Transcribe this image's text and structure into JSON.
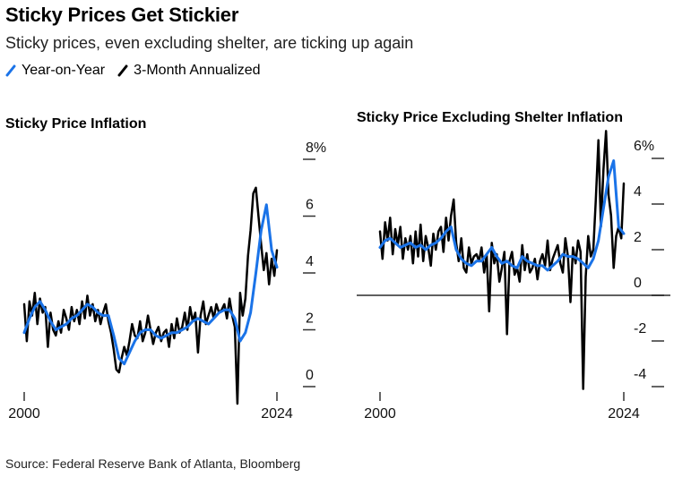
{
  "header": {
    "title": "Sticky Prices Get Stickier",
    "subtitle": "Sticky prices, even excluding shelter, are ticking up again"
  },
  "legend": [
    {
      "label": "Year-on-Year",
      "color": "#1a73e8"
    },
    {
      "label": "3-Month Annualized",
      "color": "#000000"
    }
  ],
  "source": "Source: Federal Reserve Bank of Atlanta, Bloomberg",
  "chart_data": [
    {
      "type": "line",
      "title": "Sticky Price Inflation",
      "xlim": [
        2000,
        2024
      ],
      "ylim": [
        0,
        8
      ],
      "x_ticks": [
        "2000",
        "2024"
      ],
      "y_ticks": [
        "0",
        "2",
        "4",
        "6",
        "8%"
      ],
      "y_tick_values": [
        0,
        2,
        4,
        6,
        8
      ],
      "series": [
        {
          "name": "Year-on-Year",
          "color": "#1a73e8",
          "x": [
            2000.0,
            2000.5,
            2001.0,
            2001.5,
            2002.0,
            2002.5,
            2003.0,
            2003.5,
            2004.0,
            2004.5,
            2005.0,
            2005.5,
            2006.0,
            2006.5,
            2007.0,
            2007.5,
            2008.0,
            2008.5,
            2009.0,
            2009.5,
            2010.0,
            2010.5,
            2011.0,
            2011.5,
            2012.0,
            2012.5,
            2013.0,
            2013.5,
            2014.0,
            2014.5,
            2015.0,
            2015.5,
            2016.0,
            2016.5,
            2017.0,
            2017.5,
            2018.0,
            2018.5,
            2019.0,
            2019.5,
            2020.0,
            2020.5,
            2021.0,
            2021.5,
            2022.0,
            2022.5,
            2023.0,
            2023.5,
            2024.0
          ],
          "y": [
            1.9,
            2.4,
            2.8,
            3.0,
            2.7,
            2.3,
            2.0,
            2.1,
            2.2,
            2.4,
            2.5,
            2.7,
            2.9,
            2.8,
            2.6,
            2.5,
            2.5,
            1.8,
            1.0,
            0.8,
            1.2,
            1.6,
            1.9,
            2.0,
            2.0,
            1.8,
            1.7,
            1.8,
            1.9,
            1.9,
            2.0,
            2.1,
            2.3,
            2.4,
            2.3,
            2.2,
            2.4,
            2.6,
            2.7,
            2.7,
            2.4,
            1.6,
            1.9,
            2.6,
            4.0,
            5.5,
            6.4,
            4.8,
            4.2
          ]
        },
        {
          "name": "3-Month Annualized",
          "color": "#000000",
          "x": [
            2000.0,
            2000.25,
            2000.5,
            2000.75,
            2001.0,
            2001.25,
            2001.5,
            2001.75,
            2002.0,
            2002.25,
            2002.5,
            2002.75,
            2003.0,
            2003.25,
            2003.5,
            2003.75,
            2004.0,
            2004.25,
            2004.5,
            2004.75,
            2005.0,
            2005.25,
            2005.5,
            2005.75,
            2006.0,
            2006.25,
            2006.5,
            2006.75,
            2007.0,
            2007.25,
            2007.5,
            2007.75,
            2008.0,
            2008.25,
            2008.5,
            2008.75,
            2009.0,
            2009.25,
            2009.5,
            2009.75,
            2010.0,
            2010.25,
            2010.5,
            2010.75,
            2011.0,
            2011.25,
            2011.5,
            2011.75,
            2012.0,
            2012.25,
            2012.5,
            2012.75,
            2013.0,
            2013.25,
            2013.5,
            2013.75,
            2014.0,
            2014.25,
            2014.5,
            2014.75,
            2015.0,
            2015.25,
            2015.5,
            2015.75,
            2016.0,
            2016.25,
            2016.5,
            2016.75,
            2017.0,
            2017.25,
            2017.5,
            2017.75,
            2018.0,
            2018.25,
            2018.5,
            2018.75,
            2019.0,
            2019.25,
            2019.5,
            2019.75,
            2020.0,
            2020.25,
            2020.5,
            2020.75,
            2021.0,
            2021.25,
            2021.5,
            2021.75,
            2022.0,
            2022.25,
            2022.5,
            2022.75,
            2023.0,
            2023.25,
            2023.5,
            2023.75,
            2024.0
          ],
          "y": [
            2.9,
            1.6,
            3.0,
            2.5,
            3.3,
            2.2,
            3.1,
            2.6,
            2.8,
            1.4,
            2.6,
            2.0,
            1.8,
            2.3,
            1.9,
            2.7,
            2.4,
            2.0,
            2.8,
            2.3,
            2.7,
            2.2,
            3.0,
            2.4,
            3.2,
            2.5,
            2.9,
            2.3,
            2.7,
            2.2,
            2.6,
            2.9,
            2.3,
            1.9,
            1.3,
            0.6,
            0.5,
            1.0,
            1.4,
            1.1,
            1.6,
            2.2,
            1.8,
            1.7,
            2.3,
            1.6,
            1.9,
            2.5,
            2.0,
            1.5,
            1.9,
            2.1,
            1.6,
            1.9,
            2.0,
            1.4,
            2.2,
            1.7,
            2.4,
            1.9,
            2.1,
            2.6,
            2.0,
            2.8,
            2.3,
            2.6,
            1.2,
            2.5,
            3.0,
            2.2,
            2.5,
            2.8,
            2.4,
            2.9,
            2.6,
            2.7,
            2.9,
            2.4,
            3.1,
            2.5,
            2.1,
            -0.6,
            3.3,
            2.5,
            3.1,
            4.6,
            5.5,
            6.8,
            7.0,
            6.0,
            5.0,
            4.1,
            4.7,
            3.6,
            4.5,
            3.9,
            4.8
          ]
        }
      ]
    },
    {
      "type": "line",
      "title": "Sticky Price Excluding Shelter Inflation",
      "xlim": [
        2000,
        2024
      ],
      "ylim": [
        -4,
        6
      ],
      "x_ticks": [
        "2000",
        "2024"
      ],
      "y_ticks": [
        "-4",
        "-2",
        "0",
        "2",
        "4",
        "6%"
      ],
      "y_tick_values": [
        -4,
        -2,
        0,
        2,
        4,
        6
      ],
      "zero_line": true,
      "series": [
        {
          "name": "Year-on-Year",
          "color": "#1a73e8",
          "x": [
            2000.0,
            2000.5,
            2001.0,
            2001.5,
            2002.0,
            2002.5,
            2003.0,
            2003.5,
            2004.0,
            2004.5,
            2005.0,
            2005.5,
            2006.0,
            2006.5,
            2007.0,
            2007.5,
            2008.0,
            2008.5,
            2009.0,
            2009.5,
            2010.0,
            2010.5,
            2011.0,
            2011.5,
            2012.0,
            2012.5,
            2013.0,
            2013.5,
            2014.0,
            2014.5,
            2015.0,
            2015.5,
            2016.0,
            2016.5,
            2017.0,
            2017.5,
            2018.0,
            2018.5,
            2019.0,
            2019.5,
            2020.0,
            2020.5,
            2021.0,
            2021.5,
            2022.0,
            2022.5,
            2023.0,
            2023.5,
            2024.0
          ],
          "y": [
            2.1,
            2.4,
            2.5,
            2.3,
            2.1,
            2.2,
            2.3,
            2.1,
            2.2,
            2.0,
            2.2,
            2.3,
            2.5,
            2.8,
            3.0,
            2.0,
            1.6,
            1.4,
            1.3,
            1.5,
            1.5,
            1.8,
            2.1,
            1.7,
            1.4,
            1.5,
            1.3,
            1.2,
            1.7,
            1.5,
            1.4,
            1.3,
            1.3,
            1.1,
            1.3,
            1.5,
            1.8,
            1.7,
            1.7,
            1.6,
            1.4,
            1.2,
            1.6,
            2.4,
            3.8,
            5.2,
            5.9,
            3.0,
            2.7
          ]
        },
        {
          "name": "3-Month Annualized",
          "color": "#000000",
          "x": [
            2000.0,
            2000.25,
            2000.5,
            2000.75,
            2001.0,
            2001.25,
            2001.5,
            2001.75,
            2002.0,
            2002.25,
            2002.5,
            2002.75,
            2003.0,
            2003.25,
            2003.5,
            2003.75,
            2004.0,
            2004.25,
            2004.5,
            2004.75,
            2005.0,
            2005.25,
            2005.5,
            2005.75,
            2006.0,
            2006.25,
            2006.5,
            2006.75,
            2007.0,
            2007.25,
            2007.5,
            2007.75,
            2008.0,
            2008.25,
            2008.5,
            2008.75,
            2009.0,
            2009.25,
            2009.5,
            2009.75,
            2010.0,
            2010.25,
            2010.5,
            2010.75,
            2011.0,
            2011.25,
            2011.5,
            2011.75,
            2012.0,
            2012.25,
            2012.5,
            2012.75,
            2013.0,
            2013.25,
            2013.5,
            2013.75,
            2014.0,
            2014.25,
            2014.5,
            2014.75,
            2015.0,
            2015.25,
            2015.5,
            2015.75,
            2016.0,
            2016.25,
            2016.5,
            2016.75,
            2017.0,
            2017.25,
            2017.5,
            2017.75,
            2018.0,
            2018.25,
            2018.5,
            2018.75,
            2019.0,
            2019.25,
            2019.5,
            2019.75,
            2020.0,
            2020.25,
            2020.5,
            2020.75,
            2021.0,
            2021.25,
            2021.5,
            2021.75,
            2022.0,
            2022.25,
            2022.5,
            2022.75,
            2023.0,
            2023.25,
            2023.5,
            2023.75,
            2024.0
          ],
          "y": [
            2.8,
            1.6,
            3.2,
            2.4,
            3.4,
            1.8,
            2.9,
            2.2,
            3.0,
            1.6,
            2.5,
            2.0,
            2.6,
            1.4,
            2.8,
            1.7,
            3.1,
            1.5,
            2.6,
            2.1,
            1.3,
            2.7,
            2.0,
            2.8,
            3.0,
            1.9,
            3.4,
            2.4,
            3.5,
            4.2,
            2.3,
            1.5,
            2.5,
            1.2,
            1.0,
            2.1,
            1.4,
            1.7,
            1.8,
            1.5,
            2.1,
            1.0,
            1.8,
            -0.7,
            2.3,
            1.4,
            1.8,
            0.6,
            1.2,
            1.9,
            -1.7,
            1.5,
            1.9,
            0.9,
            1.2,
            0.6,
            2.2,
            1.1,
            1.8,
            1.0,
            1.2,
            1.6,
            0.7,
            1.5,
            1.8,
            1.3,
            2.4,
            1.1,
            1.6,
            1.9,
            2.2,
            1.4,
            1.0,
            2.5,
            1.7,
            -0.3,
            2.1,
            1.4,
            2.4,
            1.9,
            -4.1,
            0.8,
            2.6,
            1.7,
            2.0,
            4.2,
            6.8,
            3.0,
            5.5,
            7.2,
            4.4,
            3.5,
            1.2,
            2.6,
            3.0,
            2.5,
            4.9
          ]
        }
      ]
    }
  ]
}
